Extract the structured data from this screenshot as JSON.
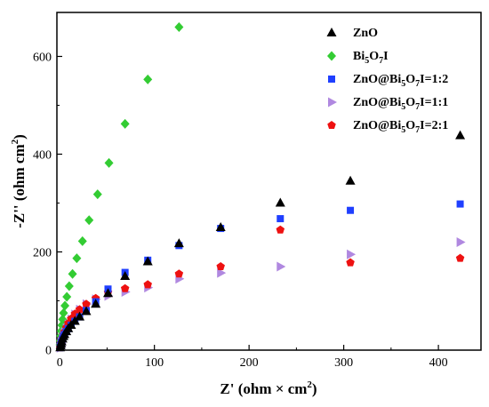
{
  "chart_data": {
    "type": "scatter",
    "title": "",
    "xlabel": "Z' (ohm × cm",
    "xlabel_sup": "2",
    "xlabel_close": ")",
    "ylabel": "-Z'' (ohm cm",
    "ylabel_sup": "2",
    "ylabel_close": ")",
    "xlim": [
      -3,
      445
    ],
    "ylim": [
      -1,
      690
    ],
    "xticks": [
      0,
      100,
      200,
      300,
      400
    ],
    "yticks": [
      0,
      200,
      400,
      600
    ],
    "legend_position": "top-right",
    "grid": false,
    "series": [
      {
        "name": "ZnO",
        "label_parts": [
          {
            "t": "ZnO"
          }
        ],
        "marker": "triangle-up",
        "color": "#000000",
        "x": [
          0.5,
          1,
          1.5,
          2,
          3,
          4,
          5,
          7,
          9,
          12,
          16,
          21,
          28,
          38,
          51,
          69,
          93,
          126,
          170,
          233,
          307,
          423
        ],
        "y": [
          4,
          8,
          12,
          16,
          22,
          27,
          31,
          37,
          43,
          50,
          58,
          67,
          78,
          93,
          115,
          150,
          180,
          217,
          250,
          300,
          345,
          438
        ]
      },
      {
        "name": "Bi5O7I",
        "label_parts": [
          {
            "t": "Bi"
          },
          {
            "t": "5",
            "sub": true
          },
          {
            "t": "O"
          },
          {
            "t": "7",
            "sub": true
          },
          {
            "t": "I"
          }
        ],
        "marker": "diamond",
        "color": "#33cc33",
        "x": [
          0.3,
          0.6,
          1,
          1.5,
          2.2,
          3,
          4,
          5.5,
          7.5,
          10,
          13.5,
          18,
          24,
          31,
          40,
          52,
          69,
          93,
          126
        ],
        "y": [
          10,
          18,
          28,
          38,
          50,
          62,
          75,
          90,
          108,
          130,
          155,
          187,
          222,
          265,
          318,
          382,
          462,
          553,
          660
        ]
      },
      {
        "name": "ZnO@Bi5O7I=1:2",
        "label_parts": [
          {
            "t": "ZnO@Bi"
          },
          {
            "t": "5",
            "sub": true
          },
          {
            "t": "O"
          },
          {
            "t": "7",
            "sub": true
          },
          {
            "t": "I=1:2"
          }
        ],
        "marker": "square",
        "color": "#1f3fff",
        "x": [
          0.5,
          1,
          1.5,
          2,
          3,
          4,
          5,
          7,
          9,
          12,
          16,
          21,
          28,
          38,
          51,
          69,
          93,
          126,
          170,
          233,
          307,
          423
        ],
        "y": [
          4,
          8,
          12,
          16,
          22,
          27,
          31,
          37,
          43,
          50,
          58,
          67,
          80,
          98,
          124,
          158,
          183,
          213,
          248,
          268,
          285,
          298
        ]
      },
      {
        "name": "ZnO@Bi5O7I=1:1",
        "label_parts": [
          {
            "t": "ZnO@Bi"
          },
          {
            "t": "5",
            "sub": true
          },
          {
            "t": "O"
          },
          {
            "t": "7",
            "sub": true
          },
          {
            "t": "I=1:1"
          }
        ],
        "marker": "triangle-right",
        "color": "#b088e0",
        "x": [
          0.5,
          1,
          1.5,
          2,
          3,
          4,
          5,
          7,
          9,
          12,
          16,
          21,
          28,
          38,
          51,
          69,
          93,
          126,
          170,
          233,
          307,
          423
        ],
        "y": [
          4,
          8,
          13,
          17,
          24,
          30,
          36,
          44,
          52,
          62,
          72,
          82,
          93,
          103,
          110,
          118,
          127,
          145,
          157,
          170,
          195,
          220
        ]
      },
      {
        "name": "ZnO@Bi5O7I=2:1",
        "label_parts": [
          {
            "t": "ZnO@Bi"
          },
          {
            "t": "5",
            "sub": true
          },
          {
            "t": "O"
          },
          {
            "t": "7",
            "sub": true
          },
          {
            "t": "I=2:1"
          }
        ],
        "marker": "pentagon",
        "color": "#ee1111",
        "x": [
          0.5,
          1,
          1.5,
          2,
          3,
          4,
          5,
          7,
          9,
          12,
          16,
          21,
          28,
          38,
          51,
          69,
          93,
          126,
          170,
          233,
          307,
          423
        ],
        "y": [
          4,
          8,
          13,
          17,
          24,
          30,
          36,
          45,
          54,
          63,
          73,
          82,
          93,
          105,
          117,
          125,
          133,
          155,
          170,
          245,
          178,
          187
        ]
      }
    ]
  }
}
